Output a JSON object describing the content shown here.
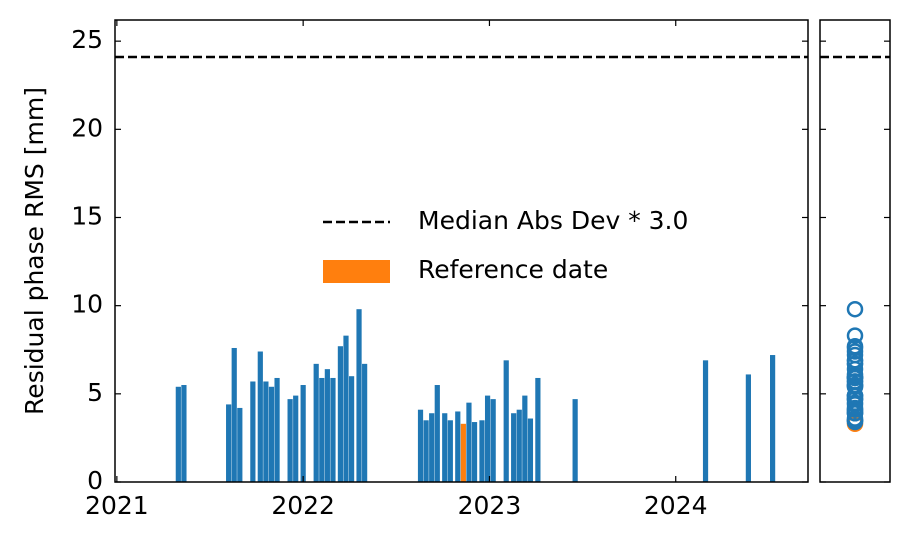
{
  "chart_data": {
    "type": "bar",
    "ylabel": "Residual phase RMS [mm]",
    "x": [
      2021.33,
      2021.36,
      2021.6,
      2021.63,
      2021.66,
      2021.73,
      2021.77,
      2021.8,
      2021.83,
      2021.86,
      2021.93,
      2021.96,
      2022.0,
      2022.07,
      2022.1,
      2022.13,
      2022.16,
      2022.2,
      2022.23,
      2022.26,
      2022.3,
      2022.33,
      2022.63,
      2022.66,
      2022.69,
      2022.72,
      2022.76,
      2022.79,
      2022.83,
      2022.86,
      2022.89,
      2022.92,
      2022.96,
      2022.99,
      2023.02,
      2023.09,
      2023.13,
      2023.16,
      2023.19,
      2023.22,
      2023.26,
      2023.46,
      2024.16,
      2024.39,
      2024.52
    ],
    "values": [
      5.4,
      5.5,
      4.4,
      7.6,
      4.2,
      5.7,
      7.4,
      5.7,
      5.4,
      5.9,
      4.7,
      4.9,
      5.5,
      6.7,
      5.9,
      6.4,
      5.9,
      7.7,
      8.3,
      6.0,
      9.8,
      6.7,
      4.1,
      3.5,
      3.9,
      5.5,
      3.9,
      3.5,
      4.0,
      3.3,
      4.5,
      3.4,
      3.5,
      4.9,
      4.7,
      6.9,
      3.9,
      4.1,
      4.9,
      3.6,
      5.9,
      4.7,
      6.9,
      6.1,
      7.2
    ],
    "colors": [
      "#1f77b4",
      "#1f77b4",
      "#1f77b4",
      "#1f77b4",
      "#1f77b4",
      "#1f77b4",
      "#1f77b4",
      "#1f77b4",
      "#1f77b4",
      "#1f77b4",
      "#1f77b4",
      "#1f77b4",
      "#1f77b4",
      "#1f77b4",
      "#1f77b4",
      "#1f77b4",
      "#1f77b4",
      "#1f77b4",
      "#1f77b4",
      "#1f77b4",
      "#1f77b4",
      "#1f77b4",
      "#1f77b4",
      "#1f77b4",
      "#1f77b4",
      "#1f77b4",
      "#1f77b4",
      "#1f77b4",
      "#1f77b4",
      "#ff7f0e",
      "#1f77b4",
      "#1f77b4",
      "#1f77b4",
      "#1f77b4",
      "#1f77b4",
      "#1f77b4",
      "#1f77b4",
      "#1f77b4",
      "#1f77b4",
      "#1f77b4",
      "#1f77b4",
      "#1f77b4",
      "#1f77b4",
      "#1f77b4",
      "#1f77b4"
    ],
    "threshold": 24.1,
    "legend": [
      {
        "label": "Median Abs Dev * 3.0",
        "color": "#000000",
        "style": "dashed"
      },
      {
        "label": "Reference date",
        "color": "#ff7f0e",
        "style": "patch"
      }
    ],
    "xlim": [
      2020.99,
      2024.71
    ],
    "xticks": [
      2021,
      2022,
      2023,
      2024
    ],
    "ylim": [
      0,
      26.2
    ],
    "yticks": [
      0,
      5,
      10,
      15,
      20,
      25
    ]
  }
}
